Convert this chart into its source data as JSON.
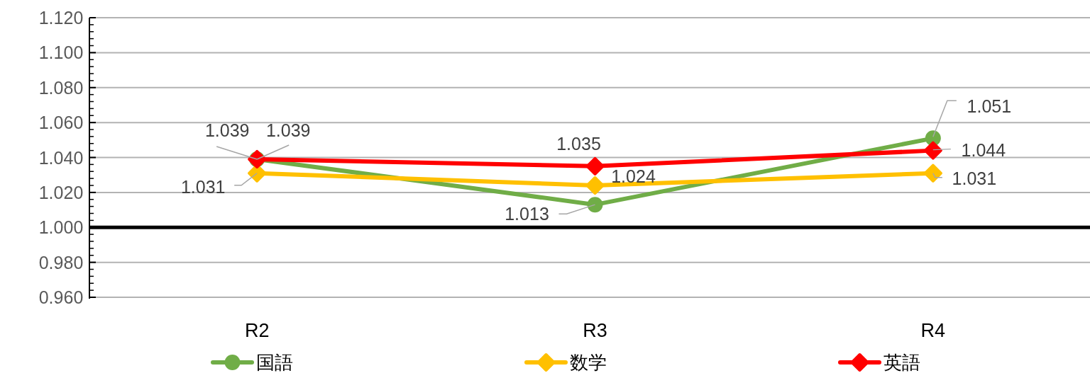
{
  "chart_data": {
    "type": "line",
    "categories": [
      "R2",
      "R3",
      "R4"
    ],
    "series": [
      {
        "name": "国語",
        "color": "#70ad47",
        "marker": "circle",
        "values": [
          1.039,
          1.013,
          1.051
        ]
      },
      {
        "name": "数学",
        "color": "#ffc000",
        "marker": "diamond",
        "values": [
          1.031,
          1.024,
          1.031
        ]
      },
      {
        "name": "英語",
        "color": "#ff0000",
        "marker": "diamond",
        "values": [
          1.039,
          1.035,
          1.044
        ]
      }
    ],
    "ylim": [
      0.96,
      1.12
    ],
    "yticks": [
      {
        "value": 0.96,
        "label": "0.960"
      },
      {
        "value": 0.98,
        "label": "0.980"
      },
      {
        "value": 1.0,
        "label": "1.000"
      },
      {
        "value": 1.02,
        "label": "1.020"
      },
      {
        "value": 1.04,
        "label": "1.040"
      },
      {
        "value": 1.06,
        "label": "1.060"
      },
      {
        "value": 1.08,
        "label": "1.080"
      },
      {
        "value": 1.1,
        "label": "1.100"
      },
      {
        "value": 1.12,
        "label": "1.120"
      }
    ],
    "grid": "y",
    "legend": "bottom",
    "data_labels": true,
    "line_style": "solid",
    "ref_lines": [
      {
        "axis": "y",
        "value": 1.0,
        "color": "#000000"
      }
    ]
  }
}
